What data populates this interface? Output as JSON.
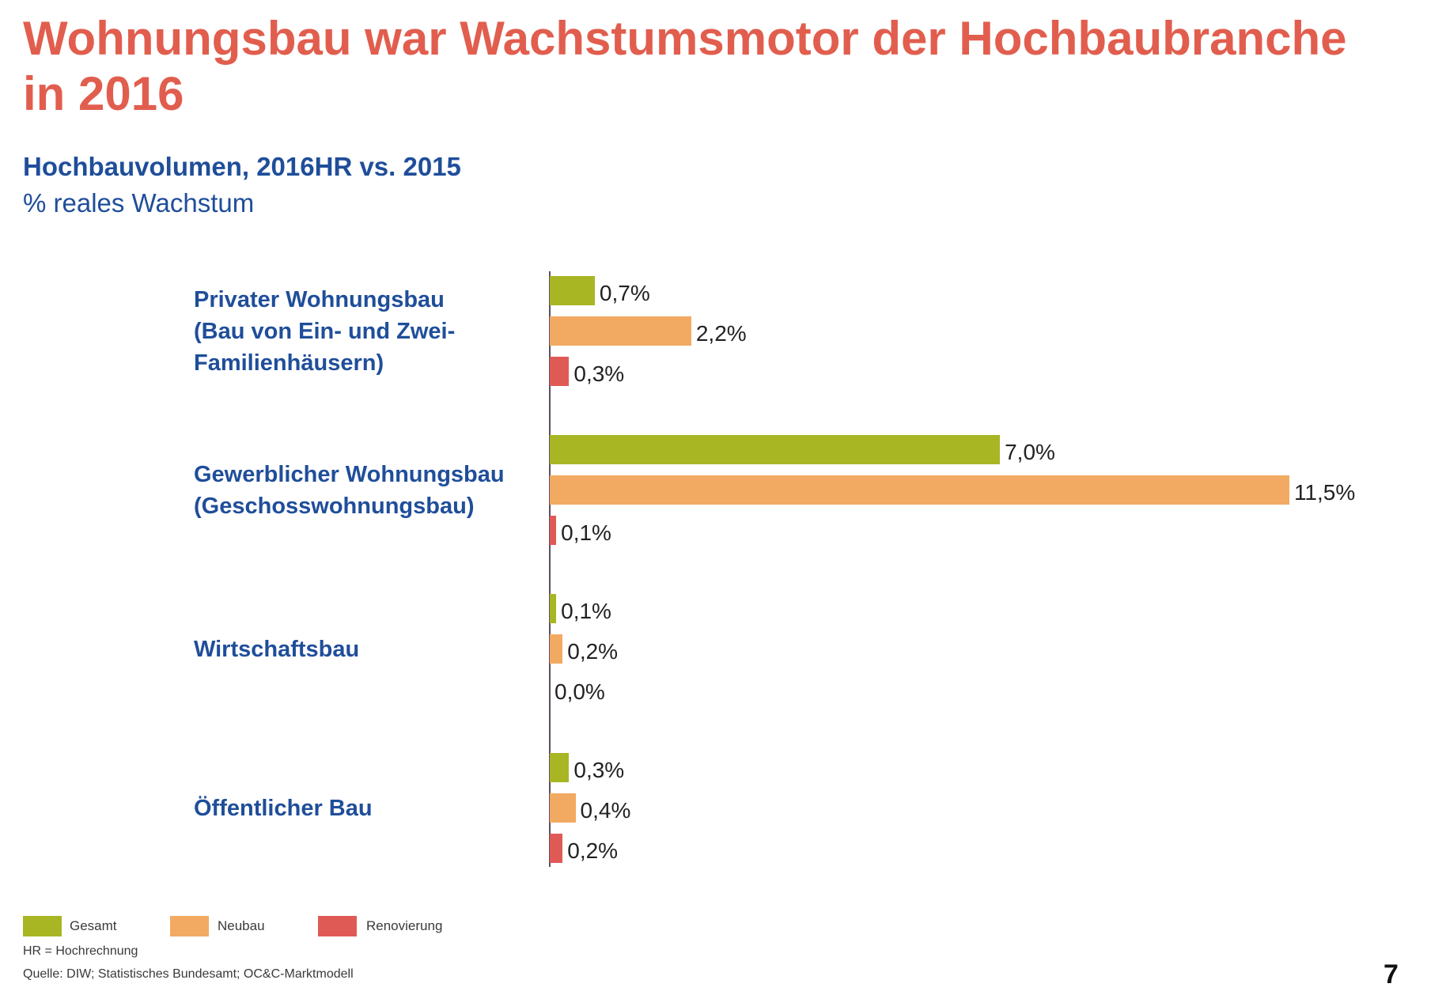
{
  "slide": {
    "title_lines": [
      "Wohnungsbau war Wachstumsmotor der Hochbaubranche",
      "in 2016"
    ],
    "footnote": "HR = Hochrechnung",
    "source": "Quelle: DIW; Statistisches Bundesamt; OC&C-Marktmodell",
    "page_number": "7"
  },
  "colors": {
    "title": "#E15E4E",
    "heading": "#1F4E9A",
    "axis": "#5D4E60",
    "value_text": "#222222"
  },
  "chart_data": {
    "type": "bar",
    "orientation": "horizontal",
    "title": "Hochbauvolumen, 2016HR vs. 2015",
    "unit": "% reales Wachstum",
    "categories": [
      [
        "Privater Wohnungsbau",
        "(Bau von Ein- und Zwei-",
        "Familienhäusern)"
      ],
      [
        "Gewerblicher Wohnungsbau",
        "(Geschosswohnungsbau)"
      ],
      [
        "Wirtschaftsbau"
      ],
      [
        "Öffentlicher Bau"
      ]
    ],
    "series": [
      {
        "name": "Gesamt",
        "color": "#A8B624",
        "values": [
          0.7,
          7.0,
          0.1,
          0.3
        ],
        "labels": [
          "0,7%",
          "7,0%",
          "0,1%",
          "0,3%"
        ]
      },
      {
        "name": "Neubau",
        "color": "#F2AA62",
        "values": [
          2.2,
          11.5,
          0.2,
          0.4
        ],
        "labels": [
          "2,2%",
          "11,5%",
          "0,2%",
          "0,4%"
        ]
      },
      {
        "name": "Renovierung",
        "color": "#E05A55",
        "values": [
          0.3,
          0.1,
          0.0,
          0.2
        ],
        "labels": [
          "0,3%",
          "0,1%",
          "0,0%",
          "0,2%"
        ]
      }
    ],
    "xlim": [
      0,
      11.5
    ],
    "grid": false,
    "legend": "bottom-left"
  }
}
